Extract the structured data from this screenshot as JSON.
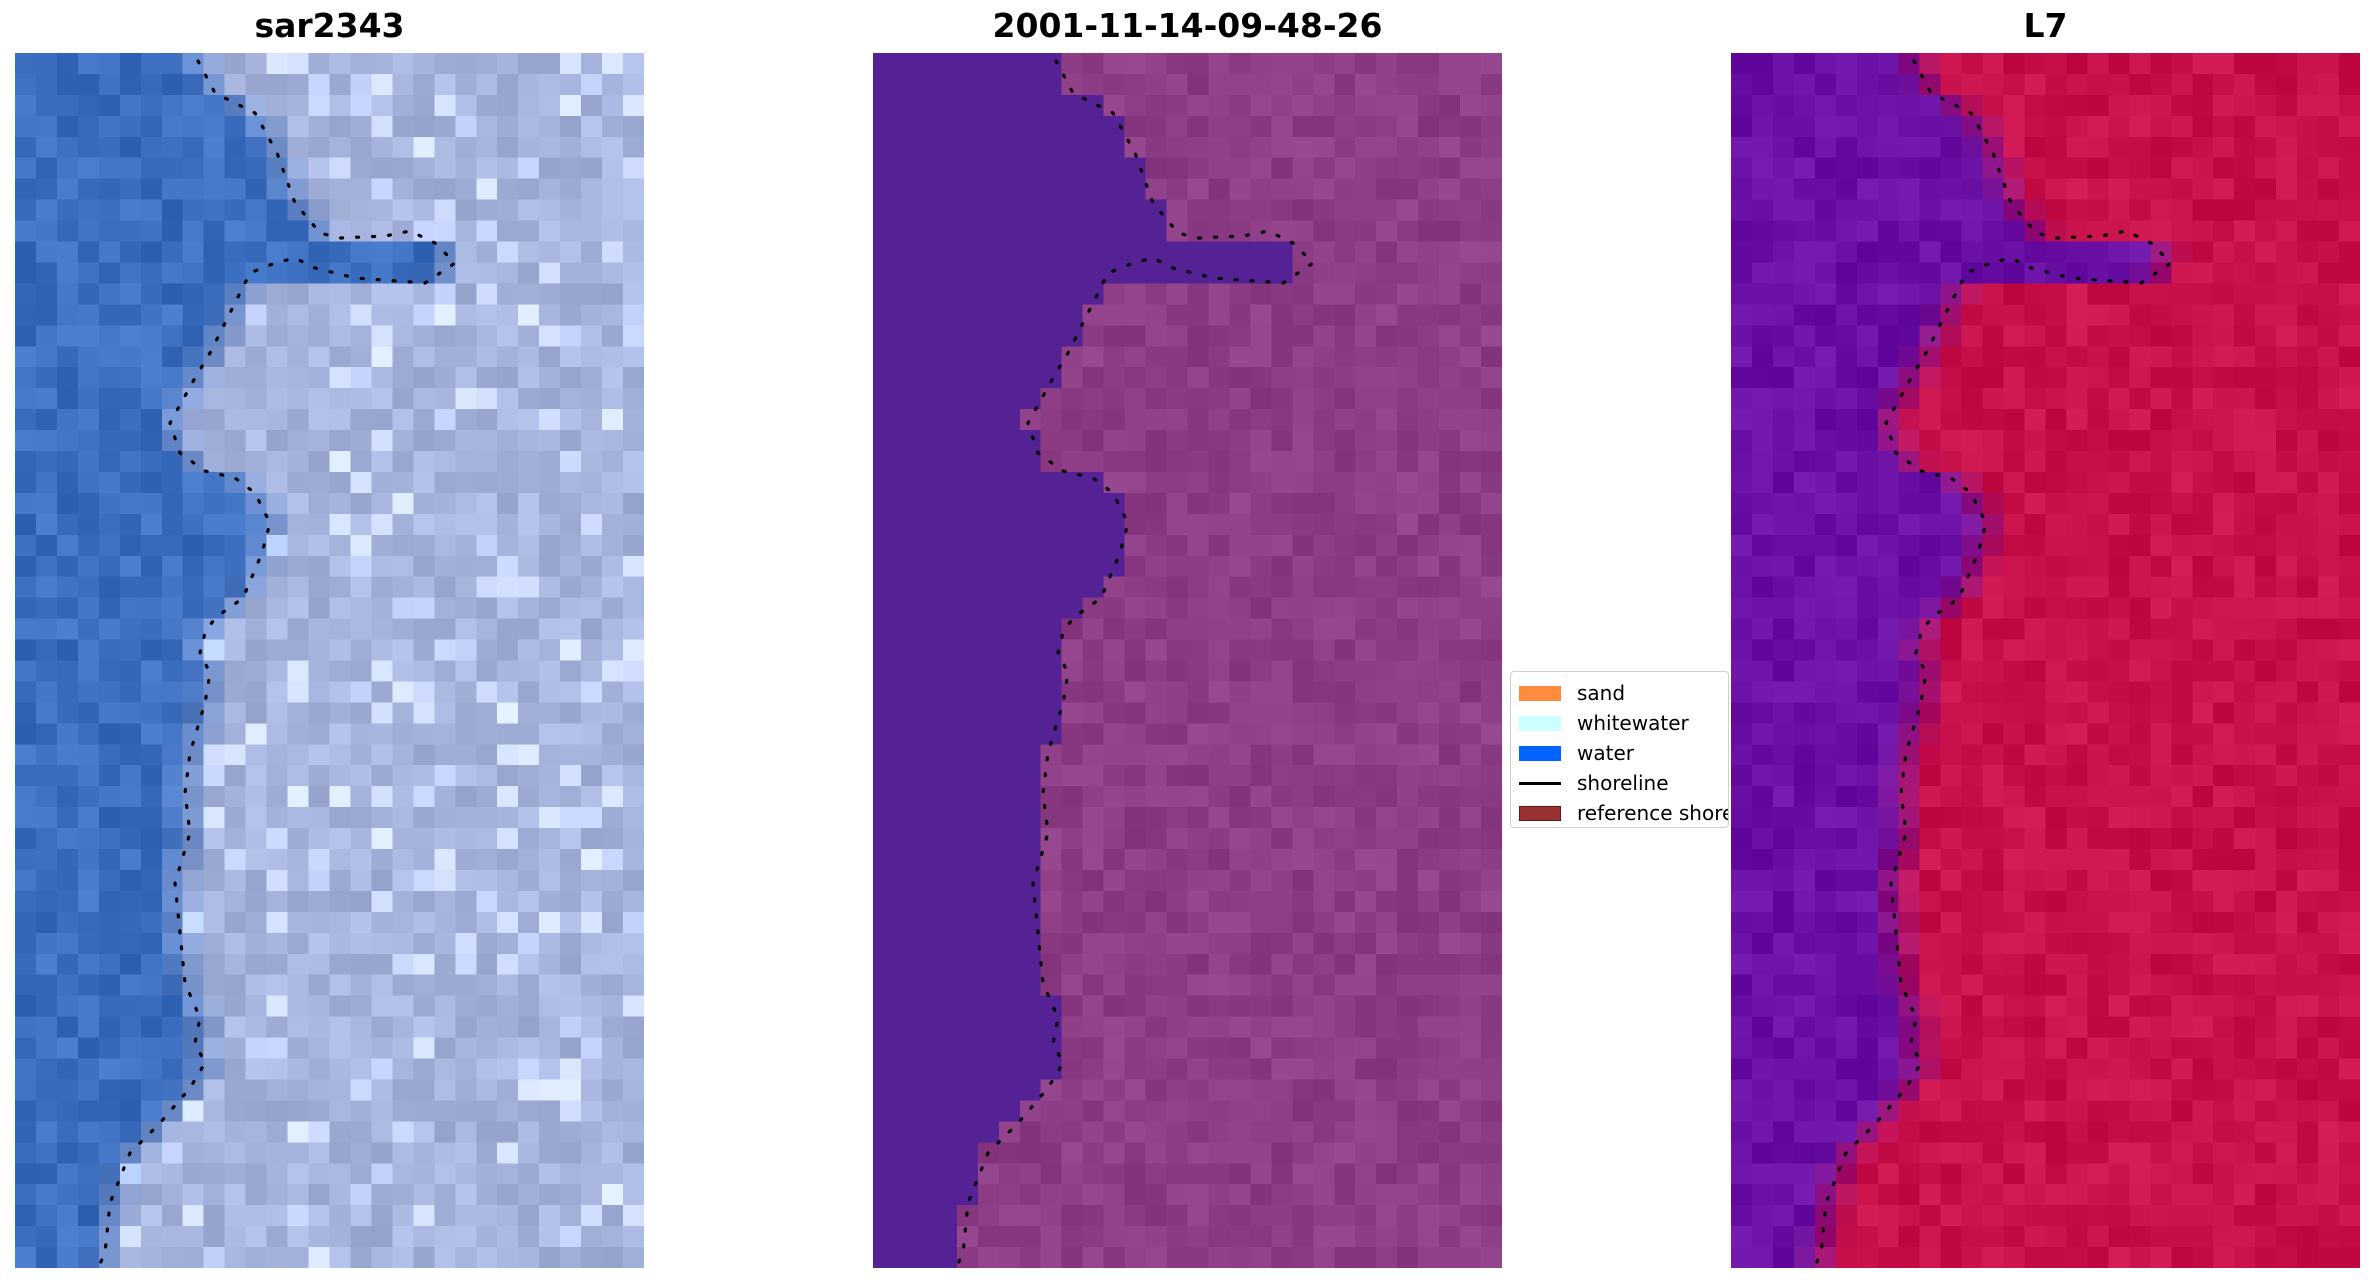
{
  "panels": [
    {
      "title": "sar2343",
      "image": "rgb-satellite-image"
    },
    {
      "title": "2001-11-14-09-48-26",
      "image": "classified-image"
    },
    {
      "title": "L7",
      "image": "index-image"
    }
  ],
  "legend": {
    "items": [
      {
        "label": "sand",
        "color": "#ff8c3c",
        "kind": "patch"
      },
      {
        "label": "whitewater",
        "color": "#ccffff",
        "kind": "patch"
      },
      {
        "label": "water",
        "color": "#0064ff",
        "kind": "patch"
      },
      {
        "label": "shoreline",
        "color": "#000000",
        "kind": "line"
      },
      {
        "label": "reference shoreline",
        "color": "#993333",
        "kind": "patch"
      }
    ]
  },
  "colors": {
    "water_rgb": "#3d6fc0",
    "land_rgb": "#a6b3dc",
    "class_water": "#542295",
    "class_land": "#8c3d85",
    "index_water": "#6a10a4",
    "index_land": "#c8104b"
  }
}
